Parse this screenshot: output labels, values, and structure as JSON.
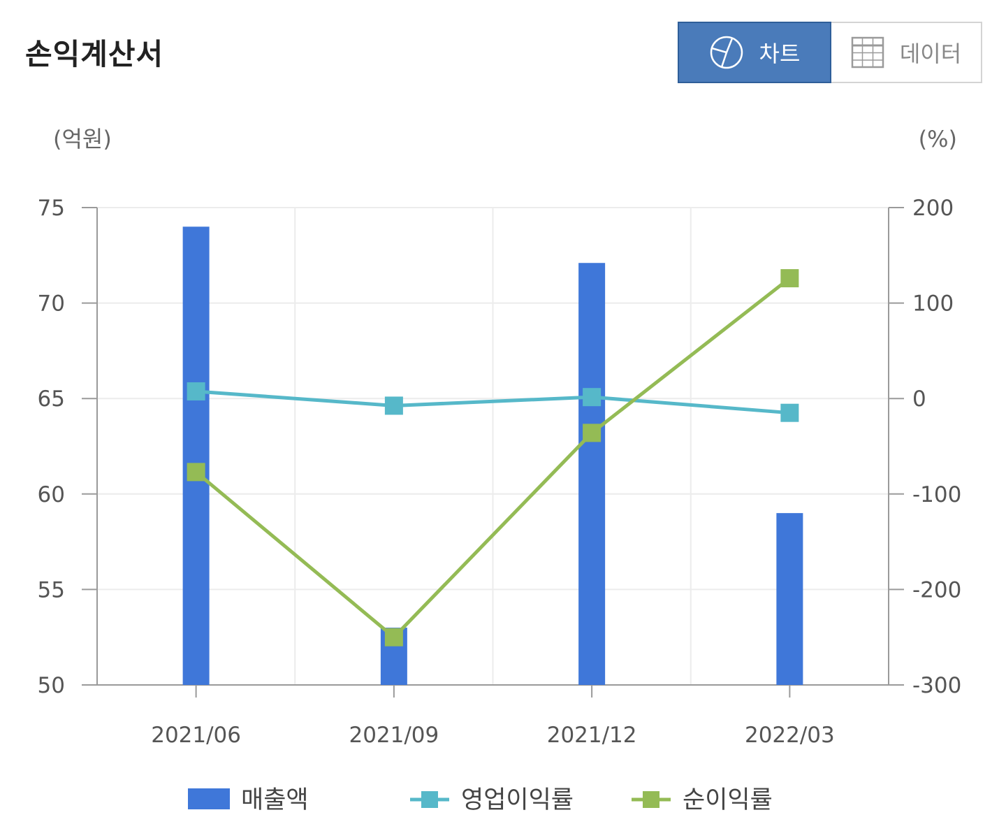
{
  "header": {
    "title": "손익계산서",
    "tabs": [
      {
        "label": "차트",
        "icon": "pie-chart-icon",
        "active": true
      },
      {
        "label": "데이터",
        "icon": "table-icon",
        "active": false
      }
    ]
  },
  "colors": {
    "bar": "#3f77d9",
    "operating": "#56b8c9",
    "net": "#94bb55",
    "active_tab": "#4a7bba"
  },
  "chart_data": {
    "type": "bar",
    "categories": [
      "2021/06",
      "2021/09",
      "2021/12",
      "2022/03"
    ],
    "left_unit": "(억원)",
    "right_unit": "(%)",
    "left_axis": {
      "min": 50,
      "max": 75,
      "ticks": [
        75,
        70,
        65,
        60,
        55,
        50
      ]
    },
    "right_axis": {
      "min": -300,
      "max": 200,
      "ticks": [
        "200",
        "100",
        "0",
        "-100",
        "-200",
        "-300"
      ]
    },
    "grid": true,
    "legend_position": "bottom",
    "series": [
      {
        "name": "매출액",
        "kind": "bar",
        "axis": "left",
        "values": [
          74,
          53,
          72.1,
          59
        ]
      },
      {
        "name": "영업이익률",
        "kind": "line",
        "axis": "right",
        "values": [
          7.5,
          -7.5,
          1.5,
          -15
        ]
      },
      {
        "name": "순이익률",
        "kind": "line",
        "axis": "right",
        "values": [
          -77,
          -250,
          -36,
          126
        ]
      }
    ]
  }
}
